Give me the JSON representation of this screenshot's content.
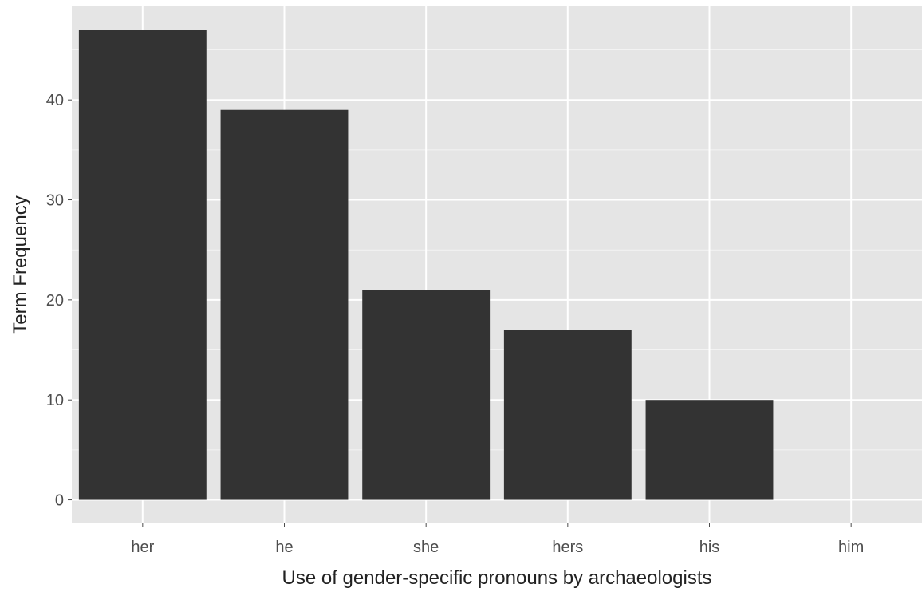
{
  "chart_data": {
    "type": "bar",
    "categories": [
      "her",
      "he",
      "she",
      "hers",
      "his",
      "him"
    ],
    "values": [
      47,
      39,
      21,
      17,
      10,
      0
    ],
    "xlabel": "Use of gender-specific pronouns by archaeologists",
    "ylabel": "Term Frequency",
    "yticks": [
      0,
      10,
      20,
      30,
      40
    ],
    "ylim": [
      -2.35,
      49.35
    ],
    "grid": true,
    "legend": "none",
    "colors": {
      "bar": "#333333",
      "panel": "#e5e5e5",
      "grid": "#ffffff",
      "tick_text": "#4d4d4d",
      "title_text": "#222222"
    }
  }
}
